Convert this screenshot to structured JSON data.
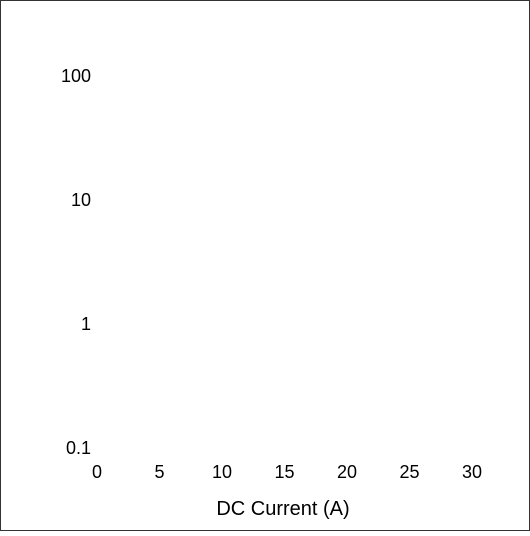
{
  "chart_data": {
    "type": "scatter",
    "title": "",
    "xlabel": "DC Current (A)",
    "ylabel": "",
    "x_ticks": [
      "0",
      "5",
      "10",
      "15",
      "20",
      "25",
      "30"
    ],
    "y_ticks": [
      "0.1",
      "1",
      "10",
      "100"
    ],
    "xlim": [
      0,
      30
    ],
    "ylim": [
      0.1,
      100
    ],
    "y_scale": "log",
    "grid": false,
    "series": []
  },
  "colors": {
    "frame": "#333333",
    "text": "#000000",
    "background": "#ffffff"
  }
}
